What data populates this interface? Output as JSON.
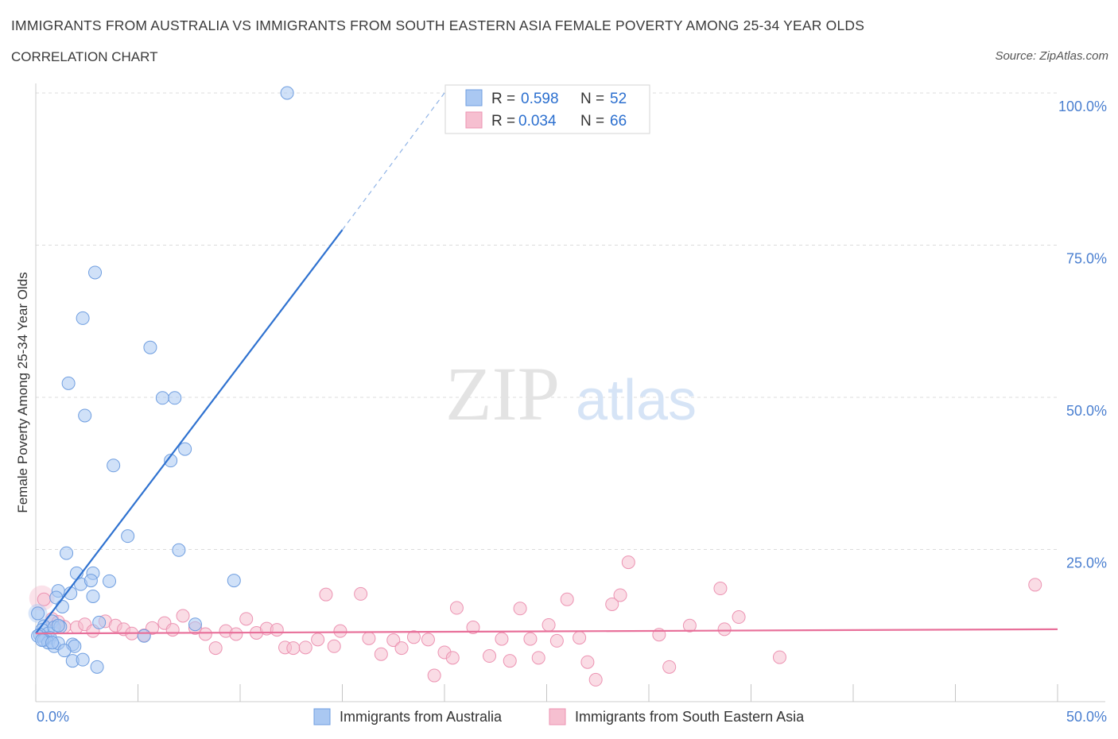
{
  "header": {
    "title": "IMMIGRANTS FROM AUSTRALIA VS IMMIGRANTS FROM SOUTH EASTERN ASIA FEMALE POVERTY AMONG 25-34 YEAR OLDS",
    "subtitle": "CORRELATION CHART",
    "source": "Source: ZipAtlas.com"
  },
  "watermark": {
    "zip": "ZIP",
    "atlas": "atlas"
  },
  "colors": {
    "blue_fill": "#aac8f2",
    "blue_stroke": "#6f9ee0",
    "blue_line": "#2f72d0",
    "pink_fill": "#f6bfd0",
    "pink_stroke": "#ec93b2",
    "pink_line": "#e8709a",
    "grid": "#dcdcdc",
    "tick_label": "#4a7fd0"
  },
  "legend": {
    "items": [
      {
        "r_label": "R =",
        "r_value": "0.598",
        "n_label": "N =",
        "n_value": "52",
        "color": "blue"
      },
      {
        "r_label": "R =",
        "r_value": "0.034",
        "n_label": "N =",
        "n_value": "66",
        "color": "pink"
      }
    ]
  },
  "chart_data": {
    "type": "scatter",
    "title": "IMMIGRANTS FROM AUSTRALIA VS IMMIGRANTS FROM SOUTH EASTERN ASIA FEMALE POVERTY AMONG 25-34 YEAR OLDS",
    "xlabel": "",
    "ylabel": "Female Poverty Among 25-34 Year Olds",
    "xlim": [
      0,
      50
    ],
    "ylim": [
      0,
      100
    ],
    "x_tick_labels": [
      "0.0%",
      "50.0%"
    ],
    "y_tick_labels": [
      "25.0%",
      "50.0%",
      "75.0%",
      "100.0%"
    ],
    "y_ticks": [
      25,
      50,
      75,
      100
    ],
    "grid": true,
    "legend_position": "top-center",
    "series": [
      {
        "name": "Immigrants from Australia",
        "color": "blue",
        "R": 0.598,
        "N": 52,
        "trend": {
          "x0": 0,
          "y0": 11.2,
          "x1": 15,
          "y1": 77.5,
          "dash_to_x": 20,
          "dash_to_y": 100
        },
        "points": [
          [
            12.3,
            100
          ],
          [
            2.9,
            70.5
          ],
          [
            2.3,
            63.0
          ],
          [
            5.6,
            58.2
          ],
          [
            1.6,
            52.3
          ],
          [
            6.2,
            49.9
          ],
          [
            6.8,
            49.9
          ],
          [
            2.4,
            47.0
          ],
          [
            3.8,
            38.8
          ],
          [
            6.6,
            39.6
          ],
          [
            7.3,
            41.5
          ],
          [
            4.5,
            27.2
          ],
          [
            7.0,
            24.9
          ],
          [
            1.5,
            24.4
          ],
          [
            2.0,
            21.1
          ],
          [
            2.8,
            21.1
          ],
          [
            3.6,
            19.8
          ],
          [
            9.7,
            19.9
          ],
          [
            1.1,
            18.2
          ],
          [
            1.7,
            17.8
          ],
          [
            0.1,
            14.5
          ],
          [
            2.2,
            19.3
          ],
          [
            2.7,
            19.9
          ],
          [
            1.0,
            17.1
          ],
          [
            2.8,
            17.3
          ],
          [
            1.3,
            15.6
          ],
          [
            0.8,
            13.2
          ],
          [
            3.1,
            13.0
          ],
          [
            0.4,
            12.4
          ],
          [
            0.3,
            11.8
          ],
          [
            0.6,
            11.2
          ],
          [
            0.9,
            12.2
          ],
          [
            0.2,
            11.0
          ],
          [
            0.5,
            10.4
          ],
          [
            0.7,
            10.5
          ],
          [
            0.1,
            10.8
          ],
          [
            0.4,
            10.1
          ],
          [
            0.6,
            9.7
          ],
          [
            0.9,
            9.1
          ],
          [
            1.1,
            9.6
          ],
          [
            1.2,
            12.3
          ],
          [
            1.8,
            9.4
          ],
          [
            1.9,
            9.1
          ],
          [
            1.4,
            8.4
          ],
          [
            1.8,
            6.7
          ],
          [
            2.3,
            6.9
          ],
          [
            3.0,
            5.7
          ],
          [
            5.3,
            10.8
          ],
          [
            7.8,
            12.7
          ],
          [
            0.3,
            10.1
          ],
          [
            0.8,
            9.7
          ],
          [
            1.1,
            12.5
          ]
        ]
      },
      {
        "name": "Immigrants from South Eastern Asia",
        "color": "pink",
        "R": 0.034,
        "N": 66,
        "trend": {
          "x0": 0,
          "y0": 11.2,
          "x1": 50,
          "y1": 11.9
        },
        "points": [
          [
            0.4,
            16.8
          ],
          [
            0.8,
            13.6
          ],
          [
            1.1,
            13.1
          ],
          [
            1.4,
            12.3
          ],
          [
            2.0,
            12.2
          ],
          [
            2.4,
            12.7
          ],
          [
            2.8,
            11.6
          ],
          [
            3.4,
            13.2
          ],
          [
            3.9,
            12.5
          ],
          [
            4.3,
            11.9
          ],
          [
            4.7,
            11.2
          ],
          [
            5.3,
            10.9
          ],
          [
            5.7,
            12.1
          ],
          [
            6.3,
            12.9
          ],
          [
            6.7,
            11.8
          ],
          [
            7.2,
            14.1
          ],
          [
            7.8,
            12.1
          ],
          [
            8.3,
            11.1
          ],
          [
            8.8,
            8.8
          ],
          [
            9.3,
            11.6
          ],
          [
            9.8,
            11.1
          ],
          [
            10.3,
            13.6
          ],
          [
            10.8,
            11.3
          ],
          [
            11.3,
            12.0
          ],
          [
            11.8,
            11.8
          ],
          [
            12.2,
            8.9
          ],
          [
            12.6,
            8.8
          ],
          [
            13.2,
            8.9
          ],
          [
            13.8,
            10.2
          ],
          [
            14.2,
            17.6
          ],
          [
            14.6,
            9.1
          ],
          [
            14.9,
            11.6
          ],
          [
            15.9,
            17.7
          ],
          [
            16.3,
            10.4
          ],
          [
            16.9,
            7.8
          ],
          [
            17.5,
            10.1
          ],
          [
            17.9,
            8.8
          ],
          [
            18.5,
            10.6
          ],
          [
            19.2,
            10.2
          ],
          [
            19.5,
            4.3
          ],
          [
            20.0,
            8.1
          ],
          [
            20.4,
            7.2
          ],
          [
            20.6,
            15.4
          ],
          [
            21.4,
            12.2
          ],
          [
            22.2,
            7.5
          ],
          [
            22.8,
            10.3
          ],
          [
            23.2,
            6.7
          ],
          [
            23.7,
            15.3
          ],
          [
            24.2,
            10.3
          ],
          [
            24.6,
            7.2
          ],
          [
            25.1,
            12.6
          ],
          [
            25.5,
            10.0
          ],
          [
            26.0,
            16.8
          ],
          [
            26.6,
            10.5
          ],
          [
            27.0,
            6.5
          ],
          [
            27.4,
            3.6
          ],
          [
            28.2,
            16.0
          ],
          [
            28.6,
            17.5
          ],
          [
            29.0,
            22.9
          ],
          [
            30.5,
            11.0
          ],
          [
            31.0,
            5.7
          ],
          [
            32.0,
            12.5
          ],
          [
            33.5,
            18.6
          ],
          [
            33.7,
            11.9
          ],
          [
            34.4,
            13.9
          ],
          [
            36.4,
            7.3
          ],
          [
            48.9,
            19.2
          ]
        ]
      }
    ]
  },
  "bottom_legend": {
    "items": [
      {
        "label": "Immigrants from Australia",
        "color": "blue"
      },
      {
        "label": "Immigrants from South Eastern Asia",
        "color": "pink"
      }
    ]
  }
}
